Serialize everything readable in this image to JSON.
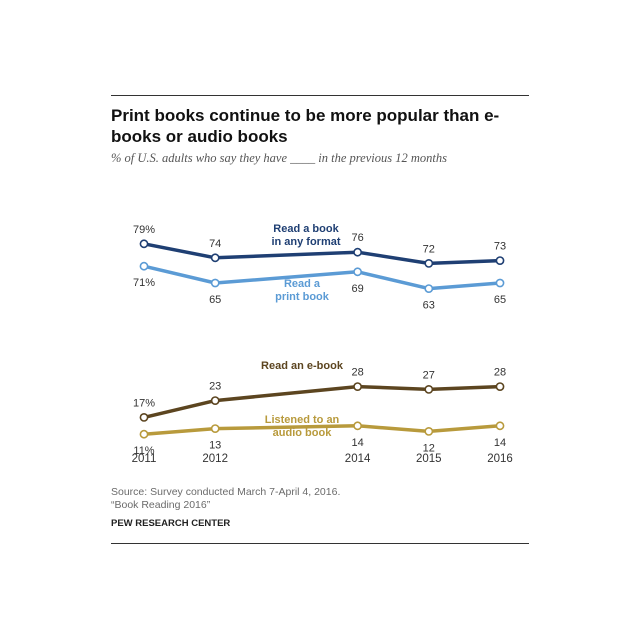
{
  "title": "Print books continue to be more popular than e-books or audio books",
  "subtitle": "% of U.S. adults who say they have ____ in the previous 12 months",
  "source": {
    "line1": "Source: Survey conducted March 7-April 4, 2016.",
    "line2": "“Book Reading 2016”"
  },
  "credit": "PEW RESEARCH CENTER",
  "chart_data": {
    "type": "line",
    "x": [
      2011,
      2012,
      2014,
      2015,
      2016
    ],
    "x_tick_labels": [
      "2011",
      "2012",
      "2014",
      "2015",
      "2016"
    ],
    "ylim": [
      0,
      100
    ],
    "grid": false,
    "series": [
      {
        "key": "any",
        "label_lines": [
          "Read a book",
          "in any format"
        ],
        "values": [
          79,
          74,
          76,
          72,
          73
        ],
        "data_labels": [
          "79%",
          "74",
          "76",
          "72",
          "73"
        ],
        "label_positions": [
          "above",
          "above",
          "above",
          "above",
          "above"
        ],
        "color": "#1f3f73"
      },
      {
        "key": "print",
        "label_lines": [
          "Read a",
          "print book"
        ],
        "values": [
          71,
          65,
          69,
          63,
          65
        ],
        "data_labels": [
          "71%",
          "65",
          "69",
          "63",
          "65"
        ],
        "label_positions": [
          "below",
          "below",
          "below",
          "below",
          "below"
        ],
        "color": "#5b9bd5"
      },
      {
        "key": "ebook",
        "label_lines": [
          "Read an e-book"
        ],
        "values": [
          17,
          23,
          28,
          27,
          28
        ],
        "data_labels": [
          "17%",
          "23",
          "28",
          "27",
          "28"
        ],
        "label_positions": [
          "above",
          "above",
          "above",
          "above",
          "above"
        ],
        "color": "#5c4520"
      },
      {
        "key": "audio",
        "label_lines": [
          "Listened to an",
          "audio book"
        ],
        "values": [
          11,
          13,
          14,
          12,
          14
        ],
        "data_labels": [
          "11%",
          "13",
          "14",
          "12",
          "14"
        ],
        "label_positions": [
          "below",
          "below",
          "below",
          "below",
          "below"
        ],
        "color": "#b89a3c"
      }
    ]
  }
}
